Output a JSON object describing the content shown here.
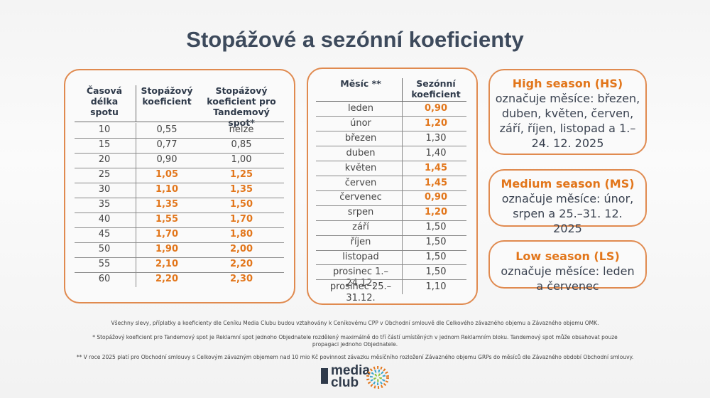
{
  "header": {
    "title": "Stopážové a sezónní koeficienty"
  },
  "length_table": {
    "columns": [
      "Časová délka spotu",
      "Stopážový koeficient",
      "Stopážový koeficient pro Tandemový spot*"
    ],
    "rows": [
      [
        "10",
        "0,55",
        "nelze"
      ],
      [
        "15",
        "0,77",
        "0,85"
      ],
      [
        "20",
        "0,90",
        "1,00"
      ],
      [
        "25",
        "1,05",
        "1,25"
      ],
      [
        "30",
        "1,10",
        "1,35"
      ],
      [
        "35",
        "1,35",
        "1,50"
      ],
      [
        "40",
        "1,55",
        "1,70"
      ],
      [
        "45",
        "1,70",
        "1,80"
      ],
      [
        "50",
        "1,90",
        "2,00"
      ],
      [
        "55",
        "2,10",
        "2,20"
      ],
      [
        "60",
        "2,20",
        "2,30"
      ]
    ],
    "highlighted_rows": [
      3,
      4,
      5,
      6,
      7,
      8,
      9,
      10
    ]
  },
  "month_table": {
    "columns": [
      "Měsíc **",
      "Sezónní koeficient"
    ],
    "rows": [
      [
        "leden",
        "0,90"
      ],
      [
        "únor",
        "1,20"
      ],
      [
        "březen",
        "1,30"
      ],
      [
        "duben",
        "1,40"
      ],
      [
        "květen",
        "1,45"
      ],
      [
        "červen",
        "1,45"
      ],
      [
        "červenec",
        "0,90"
      ],
      [
        "srpen",
        "1,20"
      ],
      [
        "září",
        "1,50"
      ],
      [
        "říjen",
        "1,50"
      ],
      [
        "listopad",
        "1,50"
      ],
      [
        "prosinec 1.–24.12.",
        "1,50"
      ],
      [
        "prosinec 25.–31.12.",
        "1,10"
      ]
    ],
    "highlighted_rows": [
      0,
      1,
      4,
      5,
      6,
      7
    ]
  },
  "seasons": [
    {
      "name": "High season (HS)",
      "text": "označuje měsíce: březen, duben, květen, červen, září, říjen, listopad a 1.–24. 12. 2025"
    },
    {
      "name": "Medium season (MS)",
      "text": "označuje měsíce: únor, srpen a 25.–31. 12. 2025"
    },
    {
      "name": "Low season (LS)",
      "text": "označuje měsíce: leden a červenec"
    }
  ],
  "notes": [
    "Všechny slevy, příplatky a koeficienty dle Ceníku Media Clubu budou vztahovány k Ceníkovému CPP v Obchodní smlouvě dle Celkového závazného objemu a Závazného objemu OMK.",
    "* Stopážový koeficient pro Tandemový spot je Reklamní spot jednoho Objednatele rozdělený maximálně do tří částí umístěných v jednom Reklamním bloku. Tandemový spot může obsahovat pouze propagaci jednoho Objednatele.",
    "** V roce 2025 platí pro Obchodní smlouvy s Celkovým závazným objemem nad 10 mio Kč povinnost závazku měsíčního rozložení Závazného objemu GRPs do měsíců dle Závazného období Obchodní smlouvy."
  ],
  "logo": {
    "line1": "media",
    "line2": "club"
  }
}
